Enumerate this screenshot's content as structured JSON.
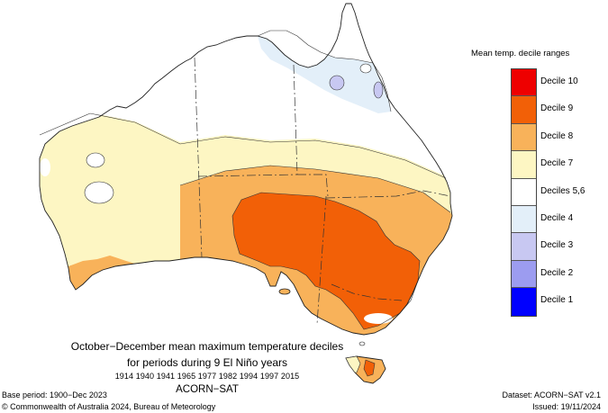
{
  "legend": {
    "title": "Mean temp. decile ranges",
    "items": [
      {
        "label": "Decile 10",
        "color": "#ee0000"
      },
      {
        "label": "Decile 9",
        "color": "#f26007"
      },
      {
        "label": "Decile 8",
        "color": "#f8b25a"
      },
      {
        "label": "Decile 7",
        "color": "#fdf6c3"
      },
      {
        "label": "Deciles 5,6",
        "color": "#ffffff"
      },
      {
        "label": "Decile 4",
        "color": "#e3eff9"
      },
      {
        "label": "Decile 3",
        "color": "#c8c8f2"
      },
      {
        "label": "Decile 2",
        "color": "#9c9cf0"
      },
      {
        "label": "Decile 1",
        "color": "#0000ff"
      }
    ]
  },
  "caption": {
    "title": "October−December mean maximum temperature deciles",
    "subtitle": "for periods during 9 El Niño years",
    "years": "1914 1940 1941 1965 1977 1982 1994 1997 2015",
    "dataset": "ACORN−SAT"
  },
  "footer": {
    "base_period": "Base period: 1900−Dec 2023",
    "copyright": "© Commonwealth of Australia 2024, Bureau of Meteorology",
    "dataset_version": "Dataset: ACORN−SAT v2.1",
    "issued": "Issued: 19/11/2024"
  }
}
